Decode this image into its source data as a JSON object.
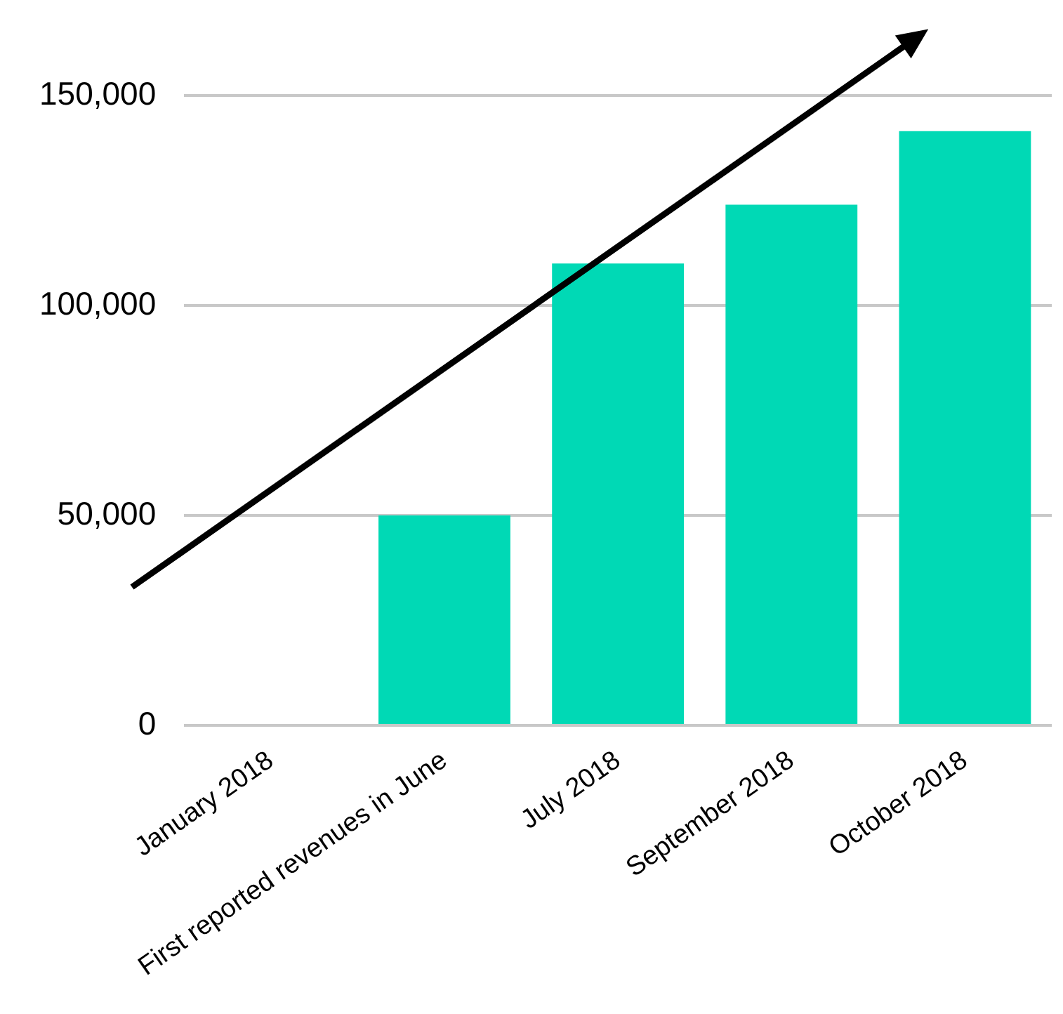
{
  "chart_data": {
    "type": "bar",
    "categories": [
      "January 2018",
      "First reported revenues in June",
      "July 2018",
      "September 2018",
      "October 2018"
    ],
    "values": [
      0,
      50000,
      110000,
      124000,
      141500
    ],
    "color": "#00d9b5",
    "ylim": [
      0,
      150000
    ],
    "yticks": [
      {
        "value": 0,
        "label": "0"
      },
      {
        "value": 50000,
        "label": "50,000"
      },
      {
        "value": 100000,
        "label": "100,000"
      },
      {
        "value": 150000,
        "label": "150,000"
      }
    ],
    "grid": "y",
    "legend": false
  }
}
